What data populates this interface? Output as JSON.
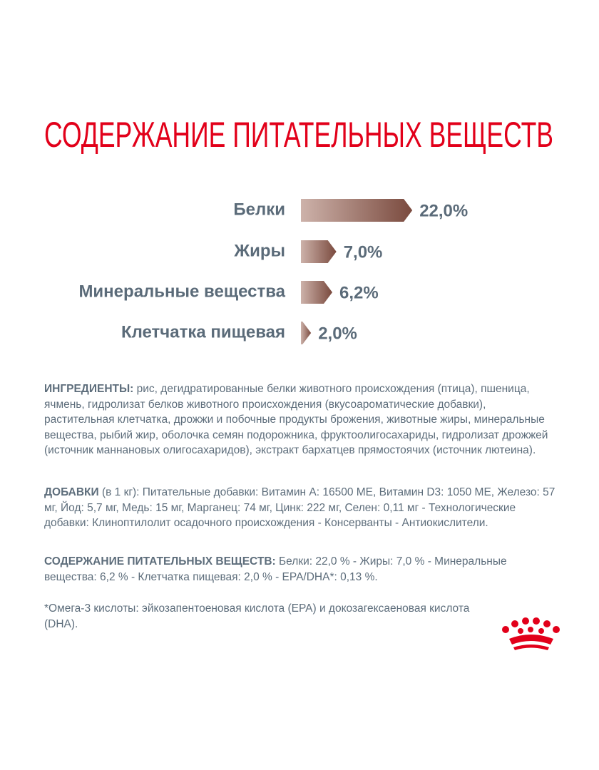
{
  "chart_data": {
    "type": "bar",
    "orientation": "horizontal",
    "title": "СОДЕРЖАНИЕ ПИТАТЕЛЬНЫХ ВЕЩЕСТВ",
    "categories": [
      "Белки",
      "Жиры",
      "Минеральные вещества",
      "Клетчатка пищевая"
    ],
    "values": [
      22.0,
      7.0,
      6.2,
      2.0
    ],
    "value_labels": [
      "22,0%",
      "7,0%",
      "6,2%",
      "2,0%"
    ],
    "color": "#7d4b3f"
  },
  "sections": [
    {
      "label": "ИНГРЕДИЕНТЫ:",
      "text": "рис, дегидратированные белки животного происхождения (птица), пшеница, ячмень, гидролизат белков животного происхождения (вкусоароматические добавки), растительная клетчатка, дрожжи и побочные продукты брожения, животные жиры, минеральные вещества, рыбий жир, оболочка семян подорожника, фруктоолигосахариды, гидролизат дрожжей (источник маннановых олигосахаридов), экстракт бархатцев прямостоячих (источник лютеина)."
    },
    {
      "label": "ДОБАВКИ",
      "text": "(в 1 кг): Питательные добавки: Витамин А: 16500 МЕ, Витамин D3: 1050 МЕ, Железо: 57 мг, Йод: 5,7 мг, Медь: 15 мг, Марганец: 74 мг, Цинк: 222 мг, Селен: 0,11 мг - Технологические добавки: Клиноптилолит осадочного происхождения - Консерванты - Антиокислители."
    },
    {
      "label": "СОДЕРЖАНИЕ ПИТАТЕЛЬНЫХ ВЕЩЕСТВ:",
      "text": "Белки: 22,0 % - Жиры: 7,0 % - Минеральные вещества: 6,2 % - Клетчатка пищевая: 2,0 % - EPA/DHA*: 0,13 %."
    }
  ],
  "footnote": "*Омега-3 кислоты: эйкозапентоеновая кислота (EPA) и докозагексаеновая кислота (DHA)."
}
